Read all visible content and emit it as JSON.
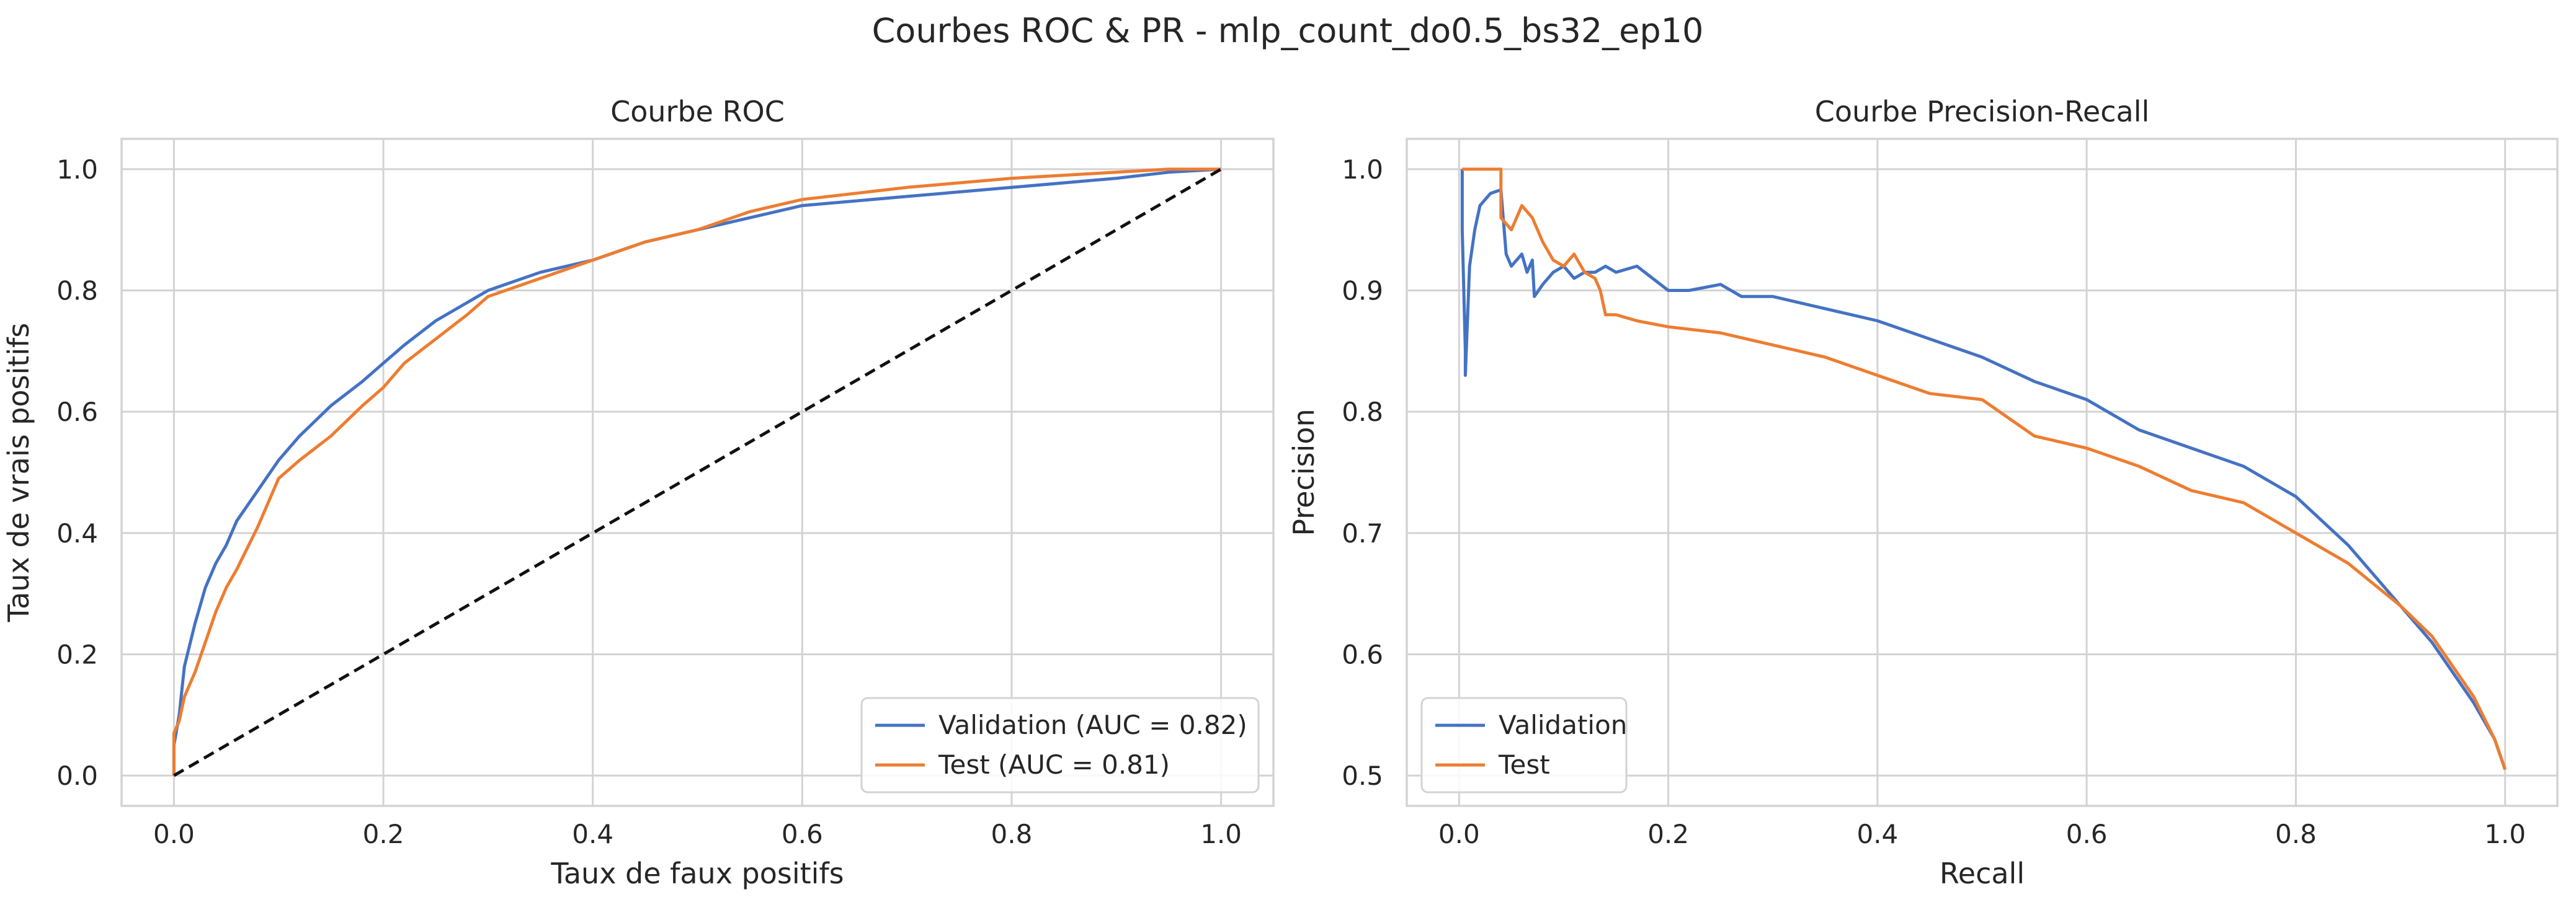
{
  "figure_title": "Courbes ROC & PR - mlp_count_do0.5_bs32_ep10",
  "colors": {
    "validation": "#4472c4",
    "test": "#ed7d31",
    "chance": "#111111",
    "grid": "#d3d3d3",
    "axes_edge": "#d3d3d3",
    "text": "#262626"
  },
  "chart_data": [
    {
      "type": "line",
      "title": "Courbe ROC",
      "xlabel": "Taux de faux positifs",
      "ylabel": "Taux de vrais positifs",
      "xlim": [
        -0.05,
        1.05
      ],
      "ylim": [
        -0.05,
        1.05
      ],
      "xticks": [
        0.0,
        0.2,
        0.4,
        0.6,
        0.8,
        1.0
      ],
      "xtick_labels": [
        "0.0",
        "0.2",
        "0.4",
        "0.6",
        "0.8",
        "1.0"
      ],
      "yticks": [
        0.0,
        0.2,
        0.4,
        0.6,
        0.8,
        1.0
      ],
      "ytick_labels": [
        "0.0",
        "0.2",
        "0.4",
        "0.6",
        "0.8",
        "1.0"
      ],
      "grid": true,
      "legend_position": "lower-right",
      "series": [
        {
          "name": "Validation (AUC = 0.82)",
          "color_key": "validation",
          "x": [
            0.0,
            0.0,
            0.005,
            0.01,
            0.02,
            0.03,
            0.04,
            0.05,
            0.06,
            0.08,
            0.1,
            0.12,
            0.15,
            0.18,
            0.2,
            0.22,
            0.25,
            0.28,
            0.3,
            0.35,
            0.4,
            0.45,
            0.5,
            0.55,
            0.6,
            0.7,
            0.8,
            0.9,
            0.95,
            1.0
          ],
          "y": [
            0.0,
            0.05,
            0.1,
            0.18,
            0.25,
            0.31,
            0.35,
            0.38,
            0.42,
            0.47,
            0.52,
            0.56,
            0.61,
            0.65,
            0.68,
            0.71,
            0.75,
            0.78,
            0.8,
            0.83,
            0.85,
            0.88,
            0.9,
            0.92,
            0.94,
            0.955,
            0.97,
            0.985,
            0.995,
            1.0
          ]
        },
        {
          "name": "Test (AUC = 0.81)",
          "color_key": "test",
          "x": [
            0.0,
            0.0,
            0.005,
            0.01,
            0.02,
            0.03,
            0.04,
            0.05,
            0.06,
            0.08,
            0.1,
            0.12,
            0.15,
            0.18,
            0.2,
            0.22,
            0.25,
            0.28,
            0.3,
            0.35,
            0.4,
            0.45,
            0.5,
            0.55,
            0.6,
            0.7,
            0.8,
            0.9,
            0.95,
            1.0
          ],
          "y": [
            0.0,
            0.07,
            0.09,
            0.13,
            0.17,
            0.22,
            0.27,
            0.31,
            0.34,
            0.41,
            0.49,
            0.52,
            0.56,
            0.61,
            0.64,
            0.68,
            0.72,
            0.76,
            0.79,
            0.82,
            0.85,
            0.88,
            0.9,
            0.93,
            0.95,
            0.97,
            0.985,
            0.995,
            1.0,
            1.0
          ]
        },
        {
          "name": "",
          "color_key": "chance",
          "dashed": true,
          "x": [
            0.0,
            1.0
          ],
          "y": [
            0.0,
            1.0
          ]
        }
      ]
    },
    {
      "type": "line",
      "title": "Courbe Precision-Recall",
      "xlabel": "Recall",
      "ylabel": "Precision",
      "xlim": [
        -0.05,
        1.05
      ],
      "ylim": [
        0.475,
        1.025
      ],
      "xticks": [
        0.0,
        0.2,
        0.4,
        0.6,
        0.8,
        1.0
      ],
      "xtick_labels": [
        "0.0",
        "0.2",
        "0.4",
        "0.6",
        "0.8",
        "1.0"
      ],
      "yticks": [
        0.5,
        0.6,
        0.7,
        0.8,
        0.9,
        1.0
      ],
      "ytick_labels": [
        "0.5",
        "0.6",
        "0.7",
        "0.8",
        "0.9",
        "1.0"
      ],
      "grid": true,
      "legend_position": "lower-left",
      "series": [
        {
          "name": "Validation",
          "color_key": "validation",
          "x": [
            0.003,
            0.003,
            0.006,
            0.006,
            0.01,
            0.015,
            0.02,
            0.03,
            0.04,
            0.045,
            0.05,
            0.06,
            0.065,
            0.07,
            0.072,
            0.08,
            0.09,
            0.1,
            0.11,
            0.12,
            0.13,
            0.14,
            0.15,
            0.17,
            0.2,
            0.22,
            0.25,
            0.27,
            0.3,
            0.35,
            0.4,
            0.45,
            0.5,
            0.55,
            0.6,
            0.65,
            0.7,
            0.75,
            0.8,
            0.85,
            0.9,
            0.93,
            0.95,
            0.97,
            0.99,
            1.0
          ],
          "y": [
            1.0,
            0.95,
            0.85,
            0.83,
            0.92,
            0.95,
            0.97,
            0.98,
            0.983,
            0.93,
            0.92,
            0.93,
            0.915,
            0.925,
            0.895,
            0.905,
            0.915,
            0.92,
            0.91,
            0.915,
            0.915,
            0.92,
            0.915,
            0.92,
            0.9,
            0.9,
            0.905,
            0.895,
            0.895,
            0.885,
            0.875,
            0.86,
            0.845,
            0.825,
            0.81,
            0.785,
            0.77,
            0.755,
            0.73,
            0.69,
            0.64,
            0.61,
            0.585,
            0.56,
            0.53,
            0.505
          ]
        },
        {
          "name": "Test",
          "color_key": "test",
          "x": [
            0.003,
            0.01,
            0.02,
            0.03,
            0.04,
            0.04,
            0.05,
            0.06,
            0.07,
            0.08,
            0.09,
            0.1,
            0.11,
            0.12,
            0.13,
            0.135,
            0.14,
            0.15,
            0.17,
            0.2,
            0.25,
            0.3,
            0.35,
            0.4,
            0.45,
            0.5,
            0.55,
            0.6,
            0.65,
            0.7,
            0.75,
            0.8,
            0.85,
            0.9,
            0.93,
            0.95,
            0.97,
            0.99,
            1.0
          ],
          "y": [
            1.0,
            1.0,
            1.0,
            1.0,
            1.0,
            0.96,
            0.95,
            0.97,
            0.96,
            0.94,
            0.925,
            0.92,
            0.93,
            0.915,
            0.91,
            0.9,
            0.88,
            0.88,
            0.875,
            0.87,
            0.865,
            0.855,
            0.845,
            0.83,
            0.815,
            0.81,
            0.78,
            0.77,
            0.755,
            0.735,
            0.725,
            0.7,
            0.675,
            0.64,
            0.615,
            0.59,
            0.565,
            0.53,
            0.505
          ]
        }
      ]
    }
  ]
}
